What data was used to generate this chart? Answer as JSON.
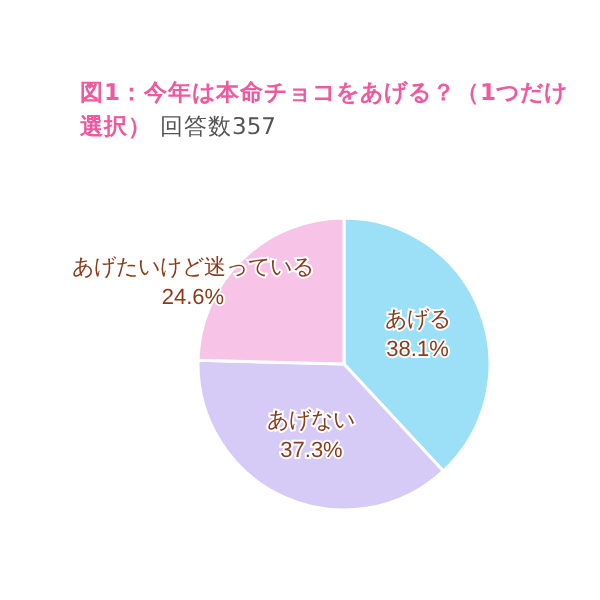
{
  "chart_data": {
    "type": "pie",
    "title": "図1：今年は本命チョコをあげる？（1つだけ選択）",
    "subtitle": "回答数357",
    "categories": [
      "あげる",
      "あげない",
      "あげたいけど迷っている"
    ],
    "values": [
      38.1,
      37.3,
      24.6
    ],
    "colors": [
      "#9ce0f8",
      "#d5cbf6",
      "#f7c3e6"
    ],
    "value_labels": [
      "38.1%",
      "37.3%",
      "24.6%"
    ],
    "legend": false
  }
}
